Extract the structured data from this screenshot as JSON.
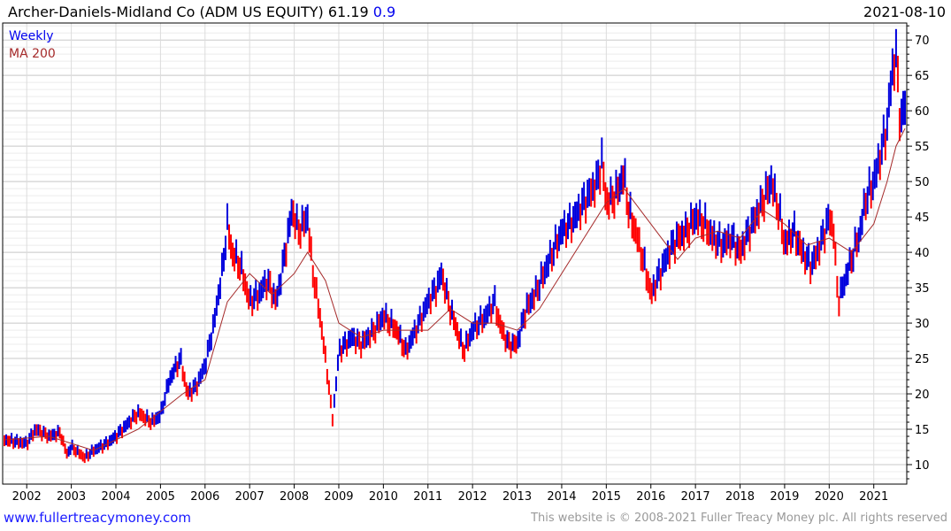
{
  "header": {
    "title": "Archer-Daniels-Midland Co (ADM US EQUITY) 61.19",
    "change": "0.9",
    "date": "2021-08-10"
  },
  "footer": {
    "site": "www.fullertreacymoney.com",
    "copyright": "This website is © 2008-2021 Fuller Treacy Money plc. All rights reserved"
  },
  "colors": {
    "up": "#0000dd",
    "down": "#ff0000",
    "ma": "#a52a2a",
    "legend_weekly": "#0000ee"
  },
  "chart_data": {
    "type": "line",
    "legend": [
      "Weekly",
      "MA 200"
    ],
    "legend_position": "top-left",
    "xlim": [
      2001.46,
      2021.74
    ],
    "ylim": [
      7.25,
      72.4
    ],
    "x_ticks": [
      "2002",
      "2003",
      "2004",
      "2005",
      "2006",
      "2007",
      "2008",
      "2009",
      "2010",
      "2011",
      "2012",
      "2013",
      "2014",
      "2015",
      "2016",
      "2017",
      "2018",
      "2019",
      "2020",
      "2021"
    ],
    "y_ticks": [
      "10",
      "15",
      "20",
      "25",
      "30",
      "35",
      "40",
      "45",
      "50",
      "55",
      "60",
      "65",
      "70"
    ],
    "grid": true,
    "price": [
      [
        2001.5,
        13.5
      ],
      [
        2002.0,
        13
      ],
      [
        2002.2,
        15
      ],
      [
        2002.5,
        14
      ],
      [
        2002.75,
        14.5
      ],
      [
        2002.9,
        11.5
      ],
      [
        2003.0,
        12.5
      ],
      [
        2003.3,
        11
      ],
      [
        2003.5,
        12
      ],
      [
        2003.8,
        13
      ],
      [
        2004.0,
        14
      ],
      [
        2004.3,
        16
      ],
      [
        2004.5,
        17.3
      ],
      [
        2004.8,
        16
      ],
      [
        2005.0,
        17
      ],
      [
        2005.2,
        22
      ],
      [
        2005.45,
        25
      ],
      [
        2005.6,
        20
      ],
      [
        2005.8,
        21
      ],
      [
        2006.0,
        24
      ],
      [
        2006.2,
        30
      ],
      [
        2006.4,
        38
      ],
      [
        2006.5,
        44
      ],
      [
        2006.6,
        40
      ],
      [
        2006.8,
        38
      ],
      [
        2007.0,
        33
      ],
      [
        2007.2,
        34
      ],
      [
        2007.4,
        36
      ],
      [
        2007.6,
        33
      ],
      [
        2007.8,
        40
      ],
      [
        2007.95,
        46
      ],
      [
        2008.1,
        43
      ],
      [
        2008.3,
        45
      ],
      [
        2008.4,
        38
      ],
      [
        2008.6,
        30
      ],
      [
        2008.8,
        20
      ],
      [
        2008.85,
        16
      ],
      [
        2008.95,
        22
      ],
      [
        2009.0,
        26
      ],
      [
        2009.3,
        28
      ],
      [
        2009.5,
        27
      ],
      [
        2009.8,
        29
      ],
      [
        2010.0,
        31
      ],
      [
        2010.3,
        29
      ],
      [
        2010.5,
        26
      ],
      [
        2010.8,
        30
      ],
      [
        2011.0,
        33
      ],
      [
        2011.2,
        35
      ],
      [
        2011.3,
        37
      ],
      [
        2011.5,
        32
      ],
      [
        2011.7,
        28
      ],
      [
        2011.8,
        26
      ],
      [
        2012.0,
        29
      ],
      [
        2012.3,
        31
      ],
      [
        2012.5,
        33
      ],
      [
        2012.6,
        30
      ],
      [
        2012.8,
        27
      ],
      [
        2013.0,
        27
      ],
      [
        2013.2,
        32
      ],
      [
        2013.4,
        34
      ],
      [
        2013.6,
        37
      ],
      [
        2013.8,
        40
      ],
      [
        2014.0,
        43
      ],
      [
        2014.2,
        44
      ],
      [
        2014.4,
        46
      ],
      [
        2014.6,
        48
      ],
      [
        2014.8,
        50
      ],
      [
        2014.9,
        53
      ],
      [
        2015.0,
        47
      ],
      [
        2015.2,
        48
      ],
      [
        2015.4,
        51
      ],
      [
        2015.5,
        46
      ],
      [
        2015.7,
        42
      ],
      [
        2015.9,
        37
      ],
      [
        2016.0,
        34
      ],
      [
        2016.2,
        37
      ],
      [
        2016.4,
        40
      ],
      [
        2016.6,
        42
      ],
      [
        2016.8,
        43
      ],
      [
        2017.0,
        45
      ],
      [
        2017.2,
        44
      ],
      [
        2017.4,
        42
      ],
      [
        2017.6,
        41
      ],
      [
        2017.8,
        42
      ],
      [
        2018.0,
        40
      ],
      [
        2018.2,
        43
      ],
      [
        2018.5,
        47
      ],
      [
        2018.7,
        50
      ],
      [
        2018.9,
        45
      ],
      [
        2019.0,
        41
      ],
      [
        2019.2,
        43
      ],
      [
        2019.4,
        40
      ],
      [
        2019.6,
        38
      ],
      [
        2019.8,
        41
      ],
      [
        2020.0,
        45
      ],
      [
        2020.1,
        43
      ],
      [
        2020.2,
        33
      ],
      [
        2020.3,
        35
      ],
      [
        2020.5,
        39
      ],
      [
        2020.7,
        43
      ],
      [
        2020.8,
        47
      ],
      [
        2021.0,
        50
      ],
      [
        2021.2,
        55
      ],
      [
        2021.3,
        58
      ],
      [
        2021.4,
        65
      ],
      [
        2021.5,
        68
      ],
      [
        2021.55,
        63
      ],
      [
        2021.6,
        58
      ],
      [
        2021.7,
        61
      ]
    ],
    "ma200": [
      [
        2001.5,
        13.5
      ],
      [
        2002.5,
        14
      ],
      [
        2003.5,
        12
      ],
      [
        2004.5,
        15
      ],
      [
        2005.5,
        20
      ],
      [
        2006.0,
        22
      ],
      [
        2006.5,
        33
      ],
      [
        2007.0,
        37
      ],
      [
        2007.5,
        34
      ],
      [
        2008.0,
        37
      ],
      [
        2008.3,
        40
      ],
      [
        2008.7,
        36
      ],
      [
        2009.0,
        30
      ],
      [
        2009.5,
        28
      ],
      [
        2010.0,
        29
      ],
      [
        2010.5,
        29
      ],
      [
        2011.0,
        29
      ],
      [
        2011.5,
        32
      ],
      [
        2012.0,
        30
      ],
      [
        2012.5,
        30
      ],
      [
        2013.0,
        29
      ],
      [
        2013.5,
        32
      ],
      [
        2014.0,
        37
      ],
      [
        2014.5,
        42
      ],
      [
        2015.0,
        47
      ],
      [
        2015.4,
        49
      ],
      [
        2016.0,
        44
      ],
      [
        2016.6,
        39
      ],
      [
        2017.0,
        42
      ],
      [
        2017.5,
        43
      ],
      [
        2018.0,
        42
      ],
      [
        2018.5,
        46
      ],
      [
        2019.0,
        44
      ],
      [
        2019.5,
        41
      ],
      [
        2020.0,
        42
      ],
      [
        2020.5,
        40
      ],
      [
        2021.0,
        44
      ],
      [
        2021.3,
        50
      ],
      [
        2021.5,
        55
      ],
      [
        2021.7,
        57.5
      ]
    ]
  }
}
